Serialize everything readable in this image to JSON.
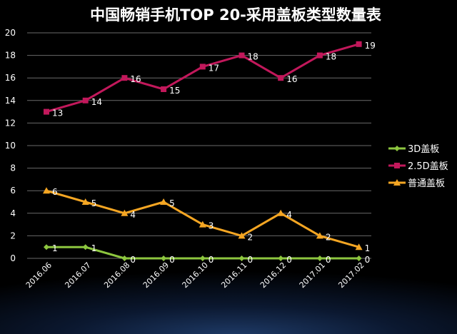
{
  "chart_data": {
    "type": "line",
    "title": "中国畅销手机TOP 20-采用盖板类型数量表",
    "xlabel": "",
    "ylabel": "",
    "categories": [
      "2016.06",
      "2016.07",
      "2016.08",
      "2016.09",
      "2016.10",
      "2016.11",
      "2016.12",
      "2017.01",
      "2017.02"
    ],
    "ylim": [
      0,
      20
    ],
    "yticks": [
      0,
      2,
      4,
      6,
      8,
      10,
      12,
      14,
      16,
      18,
      20
    ],
    "grid": true,
    "legend": "right",
    "series": [
      {
        "name": "3D盖板",
        "color": "#8dc63f",
        "marker": "diamond",
        "values": [
          1,
          1,
          0,
          0,
          0,
          0,
          0,
          0,
          0
        ]
      },
      {
        "name": "2.5D盖板",
        "color": "#c2185b",
        "marker": "square",
        "values": [
          13,
          14,
          16,
          15,
          17,
          18,
          16,
          18,
          19
        ]
      },
      {
        "name": "普通盖板",
        "color": "#f5a623",
        "marker": "triangle",
        "values": [
          6,
          5,
          4,
          5,
          3,
          2,
          4,
          2,
          1
        ]
      }
    ]
  }
}
